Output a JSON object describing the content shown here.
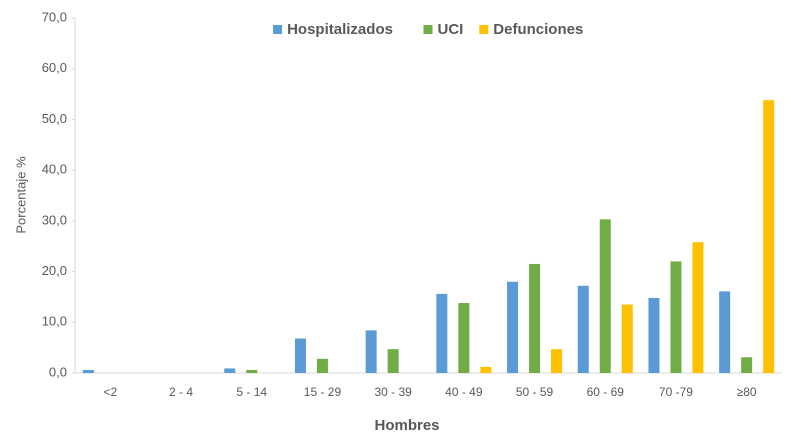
{
  "chart_data": {
    "type": "bar",
    "x_label": "Hombres",
    "y_label": "Porcentaje %",
    "categories": [
      "<2",
      "2 - 4",
      "5 - 14",
      "15 - 29",
      "30 - 39",
      "40 - 49",
      "50 - 59",
      "60 - 69",
      "70 -79",
      "≥80"
    ],
    "series": [
      {
        "name": "Hospitalizados",
        "color": "#5b9bd5",
        "values": [
          0.6,
          0,
          0.9,
          6.8,
          8.4,
          15.6,
          18.0,
          17.2,
          14.8,
          16.1
        ]
      },
      {
        "name": "UCI",
        "color": "#70ad47",
        "values": [
          0,
          0,
          0.6,
          2.8,
          4.7,
          13.8,
          21.5,
          30.3,
          22.0,
          3.1
        ]
      },
      {
        "name": "Defunciones",
        "color": "#ffc000",
        "values": [
          0,
          0,
          0,
          0,
          0,
          1.2,
          4.7,
          13.5,
          25.8,
          53.8
        ]
      }
    ],
    "ylim": [
      0,
      70
    ],
    "yticks": [
      {
        "value": 0,
        "label": "0,0"
      },
      {
        "value": 10,
        "label": "10,0"
      },
      {
        "value": 20,
        "label": "20,0"
      },
      {
        "value": 30,
        "label": "30,0"
      },
      {
        "value": 40,
        "label": "40,0"
      },
      {
        "value": 50,
        "label": "50,0"
      },
      {
        "value": 60,
        "label": "60,0"
      },
      {
        "value": 70,
        "label": "70,0"
      }
    ],
    "grid": false,
    "legend": "top"
  }
}
